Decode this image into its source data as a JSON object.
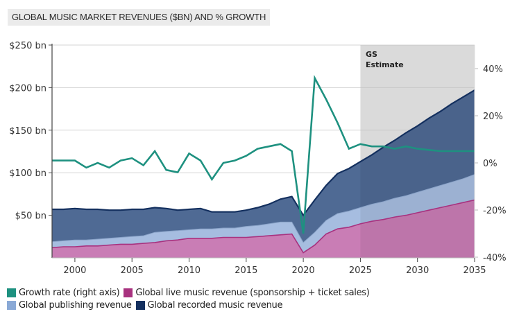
{
  "chart_data": {
    "type": "area",
    "title": "GLOBAL MUSIC MARKET REVENUES ($BN) AND % GROWTH",
    "xlabel": "",
    "ylabel_left": "",
    "ylabel_right": "",
    "x": [
      1998,
      1999,
      2000,
      2001,
      2002,
      2003,
      2004,
      2005,
      2006,
      2007,
      2008,
      2009,
      2010,
      2011,
      2012,
      2013,
      2014,
      2015,
      2016,
      2017,
      2018,
      2019,
      2020,
      2021,
      2022,
      2023,
      2024,
      2025,
      2026,
      2027,
      2028,
      2029,
      2030,
      2031,
      2032,
      2033,
      2034,
      2035
    ],
    "xlim": [
      1998,
      2035
    ],
    "x_ticks": [
      2000,
      2005,
      2010,
      2015,
      2020,
      2025,
      2030,
      2035
    ],
    "x_tick_labels": [
      "2000",
      "2005",
      "2010",
      "2015",
      "2020",
      "2025",
      "2030",
      "2035"
    ],
    "ylim_left": [
      0,
      250
    ],
    "y_ticks_left": [
      50,
      100,
      150,
      200,
      250
    ],
    "y_tick_labels_left": [
      "$50 bn",
      "$100 bn",
      "$150 bn",
      "$200 bn",
      "$250 bn"
    ],
    "ylim_right": [
      -40,
      50
    ],
    "y_ticks_right": [
      -40,
      -20,
      0,
      20,
      40
    ],
    "y_tick_labels_right": [
      "-40%",
      "-20%",
      "0%",
      "20%",
      "40%"
    ],
    "grid": true,
    "stacking": "stacked (values are cumulative totals)",
    "series": [
      {
        "name": "Global live music revenue (sponsorship + ticket sales)",
        "axis": "left",
        "kind": "area",
        "color": "#c97db5",
        "edge_color": "#a8327f",
        "values": [
          12,
          13,
          13,
          14,
          14,
          15,
          16,
          16,
          17,
          18,
          20,
          21,
          23,
          23,
          23,
          24,
          24,
          24,
          25,
          26,
          27,
          28,
          6,
          15,
          28,
          34,
          36,
          40,
          43,
          45,
          48,
          50,
          53,
          56,
          59,
          62,
          65,
          68
        ]
      },
      {
        "name": "Global publishing revenue",
        "axis": "left",
        "kind": "area",
        "color": "#a6bde0",
        "edge_color": "#8aa3c8",
        "values_cumulative": [
          19,
          20,
          21,
          21,
          22,
          23,
          24,
          25,
          26,
          30,
          31,
          32,
          33,
          34,
          34,
          35,
          35,
          37,
          38,
          40,
          42,
          42,
          18,
          30,
          44,
          52,
          55,
          59,
          63,
          66,
          70,
          73,
          77,
          81,
          85,
          89,
          93,
          98
        ]
      },
      {
        "name": "Global recorded music revenue",
        "axis": "left",
        "kind": "area",
        "color": "#4f6a94",
        "edge_color": "#14305f",
        "values_cumulative": [
          57,
          57,
          58,
          57,
          57,
          56,
          56,
          57,
          57,
          59,
          58,
          56,
          57,
          58,
          54,
          54,
          54,
          56,
          59,
          63,
          69,
          72,
          50,
          68,
          85,
          99,
          105,
          113,
          121,
          130,
          138,
          147,
          155,
          164,
          172,
          181,
          189,
          197
        ]
      },
      {
        "name": "Growth rate (right axis)",
        "axis": "right",
        "kind": "line",
        "color": "#1e9180",
        "values": [
          1,
          1,
          1,
          -2,
          0,
          -2,
          1,
          2,
          -1,
          5,
          -3,
          -4,
          4,
          1,
          -7,
          0,
          1,
          3,
          6,
          7,
          8,
          5,
          -30,
          36,
          27,
          17,
          6,
          8,
          7,
          7,
          6,
          7,
          6,
          5.5,
          5,
          5,
          5,
          5
        ]
      }
    ],
    "annotations": [
      {
        "text_line1": "GS",
        "text_line2": "Estimate",
        "shaded_from": 2025,
        "shaded_to": 2035,
        "shade_color": "#e8e8e8"
      }
    ],
    "legend": {
      "placement": "bottom-left",
      "rows": [
        [
          {
            "label": "Growth rate (right axis)",
            "color": "#1e9180"
          },
          {
            "label": "Global live music revenue (sponsorship + ticket sales)",
            "color": "#a8327f"
          }
        ],
        [
          {
            "label": "Global publishing revenue",
            "color": "#8aa9d6"
          },
          {
            "label": "Global recorded music revenue",
            "color": "#14305f"
          }
        ]
      ]
    }
  }
}
